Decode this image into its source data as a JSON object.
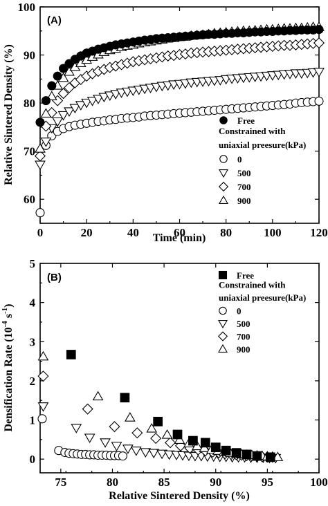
{
  "chart_data": [
    {
      "panel": "(A)",
      "type": "scatter",
      "xlabel": "Time (min)",
      "ylabel": "Relative Sintered Density (%)",
      "xlim": [
        0,
        120
      ],
      "ylim": [
        55,
        100
      ],
      "xticks": [
        0,
        20,
        40,
        60,
        80,
        100,
        120
      ],
      "yticks": [
        60,
        70,
        80,
        90,
        100
      ],
      "legend": {
        "position": "bottom-right",
        "header1": "Constrained with",
        "header2": "uniaxial preesure(kPa)"
      },
      "series": [
        {
          "name": "Free",
          "marker": "circle-filled",
          "x": [
            0,
            2.5,
            5,
            7.5,
            10,
            12.5,
            15,
            17.5,
            20,
            22.5,
            25,
            27.5,
            30,
            32.5,
            35,
            37.5,
            40,
            42.5,
            45,
            47.5,
            50,
            52.5,
            55,
            57.5,
            60,
            62.5,
            65,
            67.5,
            70,
            72.5,
            75,
            77.5,
            80,
            82.5,
            85,
            87.5,
            90,
            92.5,
            95,
            97.5,
            100,
            102.5,
            105,
            107.5,
            110,
            112.5,
            115,
            117.5,
            120
          ],
          "y": [
            76,
            80.5,
            83.6,
            85.6,
            87.2,
            88.2,
            89.1,
            89.8,
            90.4,
            90.8,
            91.2,
            91.5,
            91.8,
            92.1,
            92.3,
            92.5,
            92.7,
            92.9,
            93.1,
            93.2,
            93.4,
            93.5,
            93.6,
            93.7,
            93.8,
            93.9,
            94,
            94.1,
            94.2,
            94.3,
            94.3,
            94.4,
            94.5,
            94.5,
            94.6,
            94.6,
            94.7,
            94.8,
            94.8,
            94.9,
            94.9,
            95,
            95,
            95.1,
            95.1,
            95.2,
            95.2,
            95.2,
            95.3
          ]
        },
        {
          "name": "0",
          "marker": "circle-open",
          "x": [
            0,
            2.5,
            5,
            7.5,
            10,
            12.5,
            15,
            17.5,
            20,
            22.5,
            25,
            27.5,
            30,
            32.5,
            35,
            37.5,
            40,
            42.5,
            45,
            47.5,
            50,
            52.5,
            55,
            57.5,
            60,
            62.5,
            65,
            67.5,
            70,
            72.5,
            75,
            77.5,
            80,
            82.5,
            85,
            87.5,
            90,
            92.5,
            95,
            97.5,
            100,
            102.5,
            105,
            107.5,
            110,
            112.5,
            115,
            117.5,
            120
          ],
          "y": [
            57.2,
            71.2,
            73.2,
            74.1,
            74.7,
            75.1,
            75.4,
            75.6,
            75.8,
            76,
            76.2,
            76.3,
            76.5,
            76.6,
            76.8,
            76.9,
            77,
            77.1,
            77.3,
            77.4,
            77.5,
            77.6,
            77.7,
            77.8,
            77.9,
            78,
            78.1,
            78.2,
            78.3,
            78.4,
            78.5,
            78.6,
            78.7,
            78.8,
            78.9,
            79,
            79.1,
            79.2,
            79.3,
            79.4,
            79.5,
            79.6,
            79.7,
            79.8,
            80,
            80.1,
            80.2,
            80.3,
            80.4
          ]
        },
        {
          "name": "500",
          "marker": "triangle-down-open",
          "x": [
            0,
            2.5,
            5,
            7.5,
            10,
            12.5,
            15,
            17.5,
            20,
            22.5,
            25,
            27.5,
            30,
            32.5,
            35,
            37.5,
            40,
            42.5,
            45,
            47.5,
            50,
            52.5,
            55,
            57.5,
            60,
            62.5,
            65,
            67.5,
            70,
            72.5,
            75,
            77.5,
            80,
            82.5,
            85,
            87.5,
            90,
            92.5,
            95,
            97.5,
            100,
            102.5,
            105,
            107.5,
            110,
            112.5,
            115,
            117.5,
            120
          ],
          "y": [
            67.2,
            72,
            74.8,
            76.2,
            77.5,
            78.3,
            79,
            79.6,
            80.1,
            80.5,
            80.9,
            81.3,
            81.6,
            81.9,
            82.2,
            82.4,
            82.6,
            82.8,
            83,
            83.2,
            83.4,
            83.6,
            83.7,
            83.9,
            84,
            84.1,
            84.3,
            84.4,
            84.5,
            84.6,
            84.7,
            84.8,
            85,
            85.1,
            85.2,
            85.3,
            85.4,
            85.5,
            85.6,
            85.7,
            85.8,
            85.9,
            86,
            86.1,
            86.2,
            86.2,
            86.3,
            86.4,
            86.5
          ]
        },
        {
          "name": "700",
          "marker": "diamond-open",
          "x": [
            0,
            2.5,
            5,
            7.5,
            10,
            12.5,
            15,
            17.5,
            20,
            22.5,
            25,
            27.5,
            30,
            32.5,
            35,
            37.5,
            40,
            42.5,
            45,
            47.5,
            50,
            52.5,
            55,
            57.5,
            60,
            62.5,
            65,
            67.5,
            70,
            72.5,
            75,
            77.5,
            80,
            82.5,
            85,
            87.5,
            90,
            92.5,
            95,
            97.5,
            100,
            102.5,
            105,
            107.5,
            110,
            112.5,
            115,
            117.5,
            120
          ],
          "y": [
            69,
            75.2,
            78,
            80.5,
            82,
            83.2,
            84.2,
            84.9,
            85.6,
            86.1,
            86.6,
            87,
            87.4,
            87.7,
            88,
            88.3,
            88.6,
            88.8,
            89,
            89.2,
            89.4,
            89.6,
            89.8,
            89.9,
            90.1,
            90.2,
            90.4,
            90.5,
            90.6,
            90.7,
            90.8,
            90.9,
            91,
            91.1,
            91.2,
            91.3,
            91.4,
            91.5,
            91.6,
            91.7,
            91.8,
            91.9,
            92,
            92,
            92.1,
            92.2,
            92.3,
            92.4,
            92.5
          ]
        },
        {
          "name": "900",
          "marker": "triangle-up-open",
          "x": [
            0,
            2.5,
            5,
            7.5,
            10,
            12.5,
            15,
            17.5,
            20,
            22.5,
            25,
            27.5,
            30,
            32.5,
            35,
            37.5,
            40,
            42.5,
            45,
            47.5,
            50,
            52.5,
            55,
            57.5,
            60,
            62.5,
            65,
            67.5,
            70,
            72.5,
            75,
            77.5,
            80,
            82.5,
            85,
            87.5,
            90,
            92.5,
            95,
            97.5,
            100,
            102.5,
            105,
            107.5,
            110,
            112.5,
            115,
            117.5,
            120
          ],
          "y": [
            70.5,
            77.8,
            81.4,
            83.6,
            85.2,
            86.5,
            87.5,
            88.3,
            89,
            89.6,
            90.1,
            90.6,
            91,
            91.3,
            91.6,
            91.9,
            92.1,
            92.4,
            92.6,
            92.8,
            93,
            93.2,
            93.4,
            93.5,
            93.7,
            93.8,
            94,
            94.1,
            94.2,
            94.3,
            94.5,
            94.6,
            94.7,
            94.8,
            94.9,
            95,
            95,
            95.1,
            95.2,
            95.3,
            95.3,
            95.4,
            95.5,
            95.5,
            95.6,
            95.6,
            95.7,
            95.8,
            95.8
          ]
        }
      ]
    },
    {
      "panel": "(B)",
      "type": "scatter",
      "xlabel": "Relative Sintered Density (%)",
      "ylabel": "Densification Rate (10",
      "ylabel_exp1": "-4",
      "ylabel_mid": " s",
      "ylabel_exp2": "-1",
      "ylabel_end": ")",
      "xlim": [
        73,
        100
      ],
      "ylim": [
        -0.35,
        5
      ],
      "xticks": [
        75,
        80,
        85,
        90,
        95,
        100
      ],
      "yticks": [
        0,
        1,
        2,
        3,
        4,
        5
      ],
      "legend": {
        "position": "top-right",
        "header1": "Constrained with",
        "header2": "uniaxial preesure(kPa)"
      },
      "series": [
        {
          "name": "Free",
          "marker": "square-filled",
          "x": [
            76,
            81.2,
            84.4,
            86.3,
            87.8,
            89,
            90,
            91,
            92,
            93,
            94,
            95.3
          ],
          "y": [
            2.67,
            1.57,
            0.96,
            0.63,
            0.47,
            0.42,
            0.3,
            0.22,
            0.16,
            0.12,
            0.08,
            0.05
          ]
        },
        {
          "name": "0",
          "marker": "circle-open",
          "x": [
            73.2,
            74.8,
            75.4,
            75.8,
            76.2,
            76.6,
            77,
            77.4,
            77.8,
            78.2,
            78.6,
            79,
            79.4,
            79.8,
            80.2,
            80.6,
            81
          ],
          "y": [
            1.03,
            0.22,
            0.17,
            0.15,
            0.14,
            0.13,
            0.12,
            0.12,
            0.11,
            0.11,
            0.1,
            0.1,
            0.1,
            0.09,
            0.09,
            0.09,
            0.08
          ]
        },
        {
          "name": "500",
          "marker": "triangle-down-open",
          "x": [
            73.3,
            76.5,
            77.8,
            79.3,
            80.4,
            81.5,
            82.3,
            83.2,
            84,
            84.8,
            85.5,
            86.2,
            86.8,
            87.4,
            88,
            88.6,
            89.2,
            89.8,
            90.4,
            91,
            91.6,
            92.2,
            92.8,
            93.4,
            94,
            94.6,
            95.2,
            95.8
          ],
          "y": [
            1.35,
            0.8,
            0.55,
            0.43,
            0.34,
            0.27,
            0.22,
            0.18,
            0.16,
            0.14,
            0.12,
            0.11,
            0.1,
            0.09,
            0.08,
            0.08,
            0.07,
            0.07,
            0.06,
            0.06,
            0.05,
            0.05,
            0.05,
            0.04,
            0.04,
            0.04,
            0.03,
            0.03
          ]
        },
        {
          "name": "700",
          "marker": "diamond-open",
          "x": [
            73.3,
            77.6,
            80.2,
            82.4,
            84.2,
            85.6,
            86.6,
            87.5,
            88.3,
            89,
            89.7,
            90.3,
            90.9,
            91.5,
            92,
            92.5,
            93,
            93.5,
            94,
            94.5,
            95,
            95.5
          ],
          "y": [
            2.12,
            1.28,
            0.83,
            0.67,
            0.53,
            0.42,
            0.34,
            0.28,
            0.24,
            0.21,
            0.18,
            0.16,
            0.14,
            0.12,
            0.11,
            0.1,
            0.09,
            0.08,
            0.07,
            0.06,
            0.05,
            0.05
          ]
        },
        {
          "name": "900",
          "marker": "triangle-up-open",
          "x": [
            73.3,
            78.6,
            81.7,
            83.8,
            85.3,
            86.5,
            87.4,
            88.2,
            88.9,
            89.6,
            90.2,
            90.8,
            91.4,
            92,
            92.5,
            93,
            93.5,
            94,
            94.5,
            95,
            95.5,
            96
          ],
          "y": [
            2.62,
            1.6,
            1.06,
            0.78,
            0.62,
            0.49,
            0.4,
            0.33,
            0.28,
            0.24,
            0.21,
            0.18,
            0.16,
            0.14,
            0.12,
            0.11,
            0.1,
            0.09,
            0.08,
            0.07,
            0.06,
            0.05
          ]
        }
      ]
    }
  ]
}
